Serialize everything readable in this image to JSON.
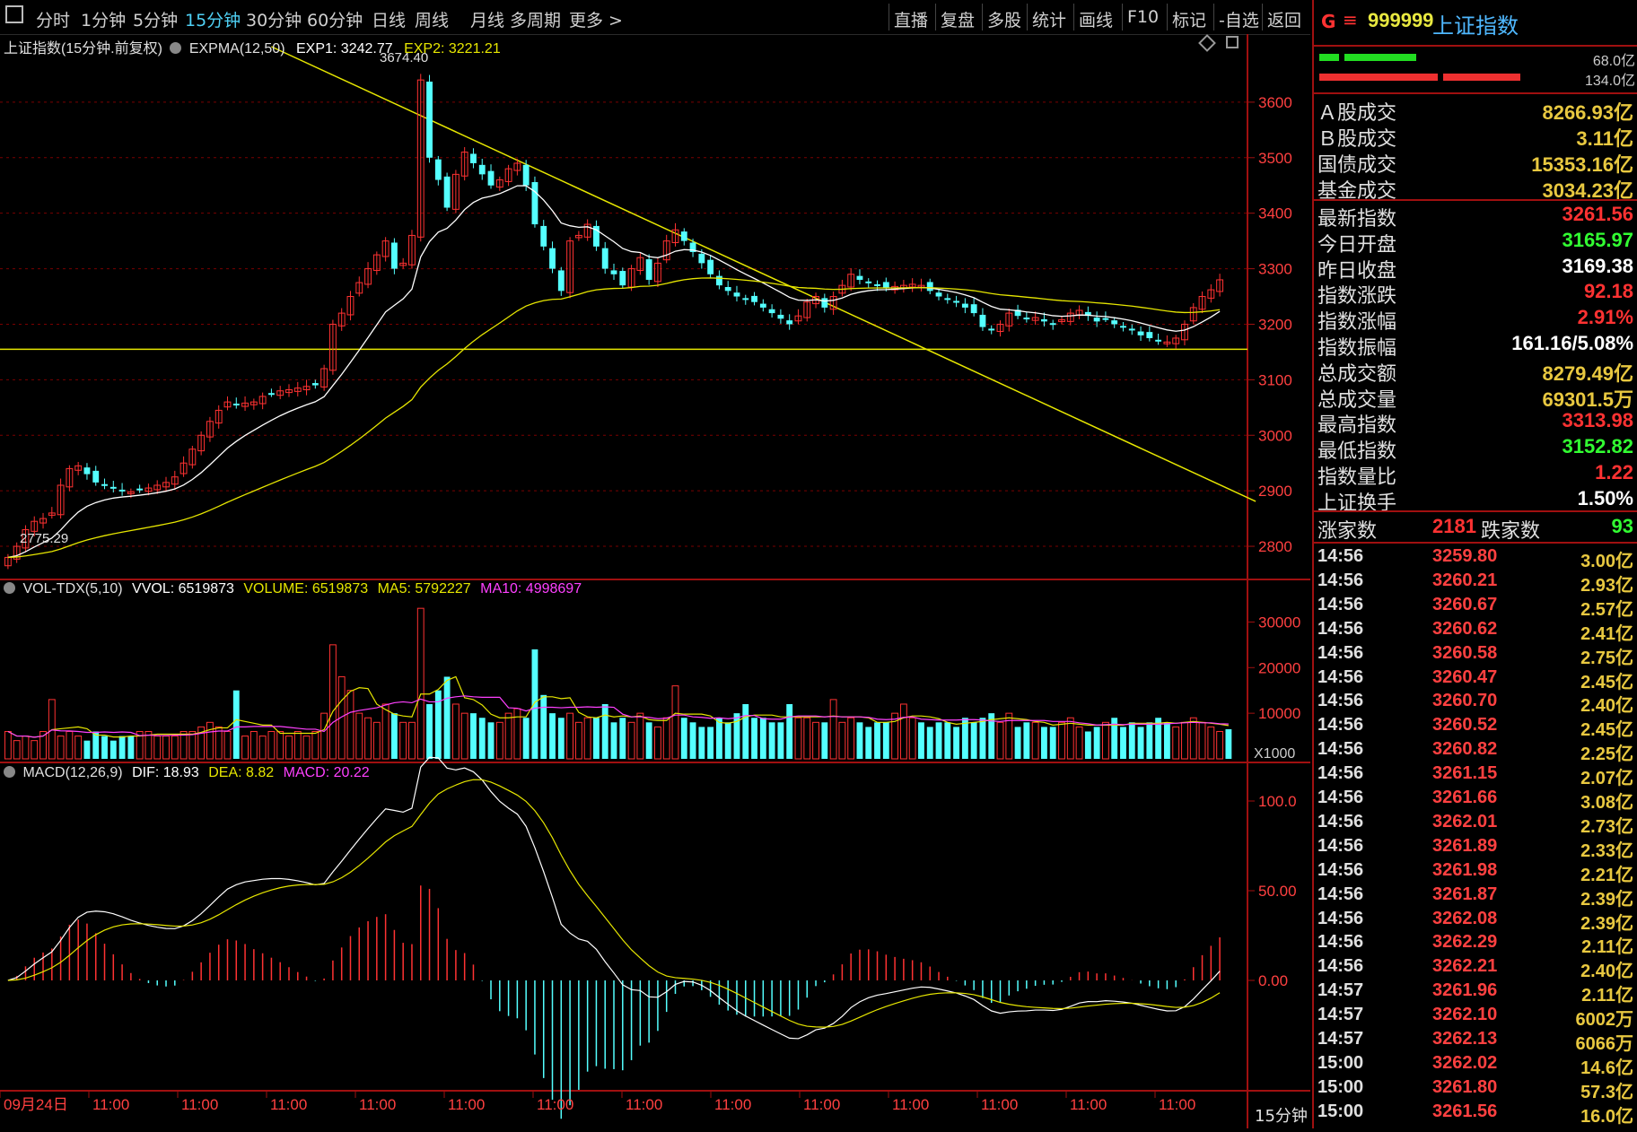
{
  "toolbar": {
    "left_items": [
      "分时",
      "1分钟",
      "5分钟",
      "15分钟",
      "30分钟",
      "60分钟",
      "日线",
      "周线",
      "月线",
      "多周期",
      "更多 >"
    ],
    "active_index": 3,
    "right_items": [
      "直播",
      "复盘",
      "多股",
      "统计",
      "画线",
      "F10",
      "标记",
      "-自选",
      "返回"
    ]
  },
  "main_header": {
    "title": "上证指数(15分钟.前复权)",
    "indicator": "EXPMA(12,50)",
    "exp1": "EXP1: 3242.77",
    "exp2": "EXP2: 3221.21",
    "high_label": "3674.40",
    "low_label": "2775.29"
  },
  "vol_header": {
    "name": "VOL-TDX(5,10)",
    "vvol": "VVOL: 6519873",
    "volume": "VOLUME: 6519873",
    "ma5": "MA5: 5792227",
    "ma10": "MA10: 4998697",
    "unit": "X1000"
  },
  "macd_header": {
    "name": "MACD(12,26,9)",
    "dif": "DIF: 18.93",
    "dea": "DEA: 8.82",
    "macd": "MACD: 20.22"
  },
  "price_ticks": [
    "3600",
    "3500",
    "3400",
    "3300",
    "3200",
    "3100",
    "3000",
    "2900",
    "2800"
  ],
  "vol_ticks": [
    "30000",
    "20000",
    "10000"
  ],
  "macd_ticks": [
    "100.0",
    "50.00",
    "0.00"
  ],
  "x_labels": [
    "09月24日",
    "11:00",
    "11:00",
    "11:00",
    "11:00",
    "11:00",
    "11:00",
    "11:00",
    "11:00",
    "11:00",
    "11:00",
    "11:00",
    "11:00",
    "11:00"
  ],
  "period_label": "15分钟",
  "colors": {
    "up": "#ff3232",
    "down": "#54ffff",
    "exp1": "#ffffff",
    "exp2": "#e6e600",
    "ma10": "#ff40ff",
    "grid": "#7a0000",
    "accent": "#a01010"
  },
  "right_panel": {
    "header_g": "G",
    "header_eq": "≡",
    "code": "999999",
    "name": "上证指数",
    "bar_top_label": "68.0亿",
    "bar_bottom_label": "134.0亿",
    "turnover": [
      {
        "label": "Ａ股成交",
        "value": "8266.93亿"
      },
      {
        "label": "Ｂ股成交",
        "value": "3.11亿"
      },
      {
        "label": "国债成交",
        "value": "15353.16亿"
      },
      {
        "label": "基金成交",
        "value": "3034.23亿"
      }
    ],
    "stats": [
      {
        "label": "最新指数",
        "value": "3261.56",
        "color": "#ff3232"
      },
      {
        "label": "今日开盘",
        "value": "3165.97",
        "color": "#32ff32"
      },
      {
        "label": "昨日收盘",
        "value": "3169.38",
        "color": "#ffffff"
      },
      {
        "label": "指数涨跌",
        "value": "92.18",
        "color": "#ff3232"
      },
      {
        "label": "指数涨幅",
        "value": "2.91%",
        "color": "#ff3232"
      },
      {
        "label": "指数振幅",
        "value": "161.16/5.08%",
        "color": "#ffffff"
      },
      {
        "label": "总成交额",
        "value": "8279.49亿",
        "color": "#e8c840"
      },
      {
        "label": "总成交量",
        "value": "69301.5万",
        "color": "#e8c840"
      },
      {
        "label": "最高指数",
        "value": "3313.98",
        "color": "#ff3232"
      },
      {
        "label": "最低指数",
        "value": "3152.82",
        "color": "#32ff32"
      },
      {
        "label": "指数量比",
        "value": "1.22",
        "color": "#ff3232"
      },
      {
        "label": "上证换手",
        "value": "1.50%",
        "color": "#ffffff"
      }
    ],
    "breadth": {
      "up_label": "涨家数",
      "up_value": "2181",
      "down_label": "跌家数",
      "down_value": "93"
    },
    "ticks": [
      {
        "time": "14:56",
        "price": "3259.80",
        "vol": "3.00亿"
      },
      {
        "time": "14:56",
        "price": "3260.21",
        "vol": "2.93亿"
      },
      {
        "time": "14:56",
        "price": "3260.67",
        "vol": "2.57亿"
      },
      {
        "time": "14:56",
        "price": "3260.62",
        "vol": "2.41亿"
      },
      {
        "time": "14:56",
        "price": "3260.58",
        "vol": "2.75亿"
      },
      {
        "time": "14:56",
        "price": "3260.47",
        "vol": "2.45亿"
      },
      {
        "time": "14:56",
        "price": "3260.70",
        "vol": "2.40亿"
      },
      {
        "time": "14:56",
        "price": "3260.52",
        "vol": "2.45亿"
      },
      {
        "time": "14:56",
        "price": "3260.82",
        "vol": "2.25亿"
      },
      {
        "time": "14:56",
        "price": "3261.15",
        "vol": "2.07亿"
      },
      {
        "time": "14:56",
        "price": "3261.66",
        "vol": "3.08亿"
      },
      {
        "time": "14:56",
        "price": "3262.01",
        "vol": "2.73亿"
      },
      {
        "time": "14:56",
        "price": "3261.89",
        "vol": "2.33亿"
      },
      {
        "time": "14:56",
        "price": "3261.98",
        "vol": "2.21亿"
      },
      {
        "time": "14:56",
        "price": "3261.87",
        "vol": "2.39亿"
      },
      {
        "time": "14:56",
        "price": "3262.08",
        "vol": "2.39亿"
      },
      {
        "time": "14:56",
        "price": "3262.29",
        "vol": "2.11亿"
      },
      {
        "time": "14:56",
        "price": "3262.21",
        "vol": "2.40亿"
      },
      {
        "time": "14:57",
        "price": "3261.96",
        "vol": "2.11亿"
      },
      {
        "time": "14:57",
        "price": "3262.10",
        "vol": "6002万"
      },
      {
        "time": "14:57",
        "price": "3262.13",
        "vol": "6066万"
      },
      {
        "time": "15:00",
        "price": "3262.02",
        "vol": "14.6亿"
      },
      {
        "time": "15:00",
        "price": "3261.80",
        "vol": "57.3亿"
      },
      {
        "time": "15:00",
        "price": "3261.56",
        "vol": "16.0亿"
      }
    ]
  },
  "chart_data": {
    "type": "candlestick",
    "symbol": "上证指数",
    "period": "15分钟",
    "price_range": [
      2750,
      3700
    ],
    "highest": 3674.4,
    "lowest": 2775.29,
    "horizontal_line": 3155,
    "trendline": [
      {
        "i": 30,
        "p": 3700
      },
      {
        "i": 138,
        "p": 2910
      }
    ],
    "closes": [
      2780,
      2800,
      2830,
      2845,
      2850,
      2860,
      2910,
      2940,
      2945,
      2930,
      2915,
      2910,
      2905,
      2900,
      2898,
      2902,
      2905,
      2910,
      2915,
      2925,
      2950,
      2975,
      3000,
      3025,
      3045,
      3060,
      3055,
      3058,
      3060,
      3070,
      3075,
      3080,
      3082,
      3085,
      3088,
      3090,
      3120,
      3200,
      3220,
      3250,
      3275,
      3300,
      3325,
      3350,
      3300,
      3310,
      3360,
      3640,
      3500,
      3460,
      3410,
      3470,
      3510,
      3490,
      3470,
      3450,
      3460,
      3480,
      3490,
      3450,
      3380,
      3340,
      3300,
      3260,
      3350,
      3360,
      3380,
      3340,
      3300,
      3290,
      3270,
      3300,
      3320,
      3280,
      3310,
      3350,
      3370,
      3350,
      3330,
      3310,
      3290,
      3270,
      3260,
      3250,
      3245,
      3240,
      3230,
      3220,
      3210,
      3200,
      3215,
      3240,
      3250,
      3230,
      3250,
      3270,
      3290,
      3280,
      3275,
      3270,
      3265,
      3268,
      3270,
      3272,
      3270,
      3260,
      3250,
      3245,
      3240,
      3230,
      3220,
      3195,
      3190,
      3200,
      3220,
      3215,
      3210,
      3212,
      3205,
      3200,
      3208,
      3220,
      3225,
      3215,
      3205,
      3210,
      3200,
      3195,
      3190,
      3180,
      3175,
      3170,
      3168,
      3175,
      3200,
      3230,
      3250,
      3262,
      3280
    ],
    "volume": [
      6,
      4,
      5,
      4,
      6,
      13,
      5,
      6,
      5,
      4,
      6,
      5,
      4,
      5,
      5,
      6,
      6,
      5,
      5,
      5,
      6,
      6,
      7,
      8,
      7,
      6,
      15,
      5,
      6,
      5,
      6,
      6,
      5,
      6,
      5,
      6,
      10,
      25,
      18,
      15,
      10,
      9,
      8,
      12,
      10,
      8,
      8,
      33,
      12,
      15,
      18,
      12,
      10,
      10,
      9,
      8,
      8,
      10,
      11,
      9,
      24,
      14,
      10,
      9,
      10,
      8,
      9,
      9,
      12,
      8,
      9,
      8,
      10,
      8,
      7,
      9,
      16,
      9,
      8,
      7,
      7,
      9,
      8,
      10,
      12,
      9,
      9,
      8,
      8,
      12,
      9,
      9,
      8,
      8,
      13,
      8,
      9,
      8,
      7,
      8,
      8,
      10,
      12,
      9,
      8,
      7,
      8,
      8,
      7,
      9,
      8,
      9,
      10,
      8,
      10,
      7,
      8,
      8,
      7,
      7,
      8,
      9,
      7,
      6,
      7,
      8,
      9,
      7,
      8,
      7,
      8,
      9,
      8,
      7,
      8,
      9,
      8,
      7,
      6,
      6.5
    ],
    "vol_ma5_last": 5792227,
    "vol_ma10_last": 4998697,
    "exp1_last": 3242.77,
    "exp2_last": 3221.21,
    "macd_last": {
      "dif": 18.93,
      "dea": 8.82,
      "macd": 20.22
    },
    "macd_range": [
      -60,
      110
    ]
  }
}
